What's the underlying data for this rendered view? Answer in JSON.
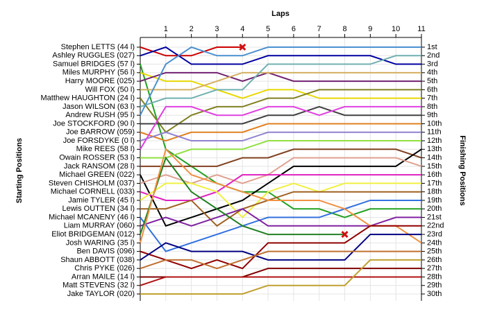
{
  "chart_data": {
    "type": "line",
    "x_label": "Laps",
    "y_label": "Starting Positions",
    "y2_label": "Finishing Positions",
    "x": [
      0,
      1,
      2,
      3,
      4,
      5,
      6,
      7,
      8,
      9,
      10,
      11
    ],
    "xlim": [
      0,
      11
    ],
    "xticks": [
      1,
      2,
      3,
      4,
      5,
      6,
      7,
      8,
      9,
      10,
      11
    ],
    "ylim": [
      1,
      30
    ],
    "y_inverted": true,
    "grid": true,
    "y2ticks": [
      {
        "value": 1,
        "label": "1st"
      },
      {
        "value": 2,
        "label": "2nd"
      },
      {
        "value": 3,
        "label": "3rd"
      },
      {
        "value": 4,
        "label": "4th"
      },
      {
        "value": 5,
        "label": "5th"
      },
      {
        "value": 6,
        "label": "6th"
      },
      {
        "value": 7,
        "label": "7th"
      },
      {
        "value": 8,
        "label": "8th"
      },
      {
        "value": 9,
        "label": "9th"
      },
      {
        "value": 10,
        "label": "10th"
      },
      {
        "value": 11,
        "label": "11th"
      },
      {
        "value": 12,
        "label": "12th"
      },
      {
        "value": 13,
        "label": "13th"
      },
      {
        "value": 14,
        "label": "14th"
      },
      {
        "value": 15,
        "label": "15th"
      },
      {
        "value": 16,
        "label": "16th"
      },
      {
        "value": 17,
        "label": "17th"
      },
      {
        "value": 18,
        "label": "18th"
      },
      {
        "value": 19,
        "label": "19th"
      },
      {
        "value": 20,
        "label": "20th"
      },
      {
        "value": 21,
        "label": "21st"
      },
      {
        "value": 22,
        "label": "22nd"
      },
      {
        "value": 23,
        "label": "23rd"
      },
      {
        "value": 24,
        "label": "24th"
      },
      {
        "value": 25,
        "label": "25th"
      },
      {
        "value": 26,
        "label": "26th"
      },
      {
        "value": 27,
        "label": "27th"
      },
      {
        "value": 28,
        "label": "28th"
      },
      {
        "value": 29,
        "label": "29th"
      },
      {
        "value": 30,
        "label": "30th"
      }
    ],
    "series": [
      {
        "name": "Stephen LETTS (44 l)",
        "color": "#cc0000",
        "values": [
          1,
          2,
          2,
          1,
          1,
          null,
          null,
          null,
          null,
          null,
          null,
          null
        ],
        "end_marker": "x"
      },
      {
        "name": "Ashley RUGGLES (027)",
        "color": "#0000a0",
        "values": [
          2,
          1,
          3,
          3,
          3,
          2,
          2,
          2,
          2,
          2,
          3,
          3
        ]
      },
      {
        "name": "Samuel BRIDGES (57 l)",
        "color": "#22a022",
        "values": [
          3,
          13,
          15,
          17,
          18,
          18,
          20,
          20,
          21,
          20,
          20,
          20
        ]
      },
      {
        "name": "Miles MURPHY (56 l)",
        "color": "#e8d800",
        "values": [
          4,
          5,
          5,
          6,
          7,
          6,
          6,
          7,
          7,
          7,
          7,
          7
        ]
      },
      {
        "name": "Harry MOORE (025)",
        "color": "#702070",
        "values": [
          5,
          4,
          4,
          4,
          5,
          4,
          5,
          5,
          5,
          5,
          5,
          5
        ]
      },
      {
        "name": "Will FOX (50 l)",
        "color": "#d4b060",
        "values": [
          6,
          6,
          6,
          5,
          4,
          4,
          4,
          4,
          4,
          4,
          4,
          4
        ]
      },
      {
        "name": "Matthew HAUGHTON (24 l)",
        "color": "#808020",
        "values": [
          7,
          11,
          9,
          8,
          8,
          7,
          7,
          6,
          6,
          6,
          6,
          6
        ]
      },
      {
        "name": "Jason WILSON (63 l)",
        "color": "#70b0b0",
        "values": [
          8,
          7,
          7,
          6,
          6,
          3,
          3,
          3,
          3,
          3,
          2,
          2
        ]
      },
      {
        "name": "Andrew RUSH (95 l)",
        "color": "#4a90d0",
        "values": [
          9,
          3,
          1,
          2,
          2,
          1,
          1,
          1,
          1,
          1,
          1,
          1
        ]
      },
      {
        "name": "Joe STOCKFORD (90 l)",
        "color": "#404040",
        "values": [
          10,
          10,
          10,
          10,
          10,
          9,
          9,
          8,
          9,
          9,
          9,
          9
        ]
      },
      {
        "name": "Joe BARROW (059)",
        "color": "#e08020",
        "values": [
          11,
          12,
          11,
          11,
          11,
          10,
          10,
          10,
          10,
          10,
          10,
          10
        ]
      },
      {
        "name": "Joe FORSDYKE (0 l)",
        "color": "#9080d0",
        "values": [
          12,
          11,
          12,
          12,
          12,
          11,
          11,
          11,
          11,
          11,
          11,
          11
        ]
      },
      {
        "name": "Mike REES (58 l)",
        "color": "#e040e0",
        "values": [
          13,
          8,
          8,
          9,
          9,
          8,
          8,
          9,
          8,
          8,
          8,
          8
        ]
      },
      {
        "name": "Owain ROSSER (53 l)",
        "color": "#90e040",
        "values": [
          14,
          14,
          13,
          13,
          13,
          12,
          12,
          12,
          12,
          12,
          12,
          12
        ]
      },
      {
        "name": "Jack RANSOM (28 l)",
        "color": "#804020",
        "values": [
          15,
          15,
          15,
          15,
          14,
          14,
          13,
          13,
          13,
          13,
          13,
          14
        ]
      },
      {
        "name": "Michael GREEN (022)",
        "color": "#000000",
        "values": [
          16,
          22,
          21,
          20,
          19,
          17,
          15,
          15,
          15,
          15,
          15,
          13
        ]
      },
      {
        "name": "Steven CHISHOLM (037)",
        "color": "#e0a090",
        "values": [
          17,
          16,
          17,
          16,
          17,
          16,
          14,
          14,
          14,
          14,
          14,
          15
        ]
      },
      {
        "name": "Michael CORNELL (033)",
        "color": "#e020c0",
        "values": [
          18,
          19,
          19,
          18,
          16,
          16,
          16,
          16,
          16,
          16,
          16,
          16
        ]
      },
      {
        "name": "Jamie TYLER (45 l)",
        "color": "#f0f040",
        "values": [
          19,
          17,
          17,
          18,
          21,
          18,
          17,
          18,
          17,
          17,
          17,
          17
        ]
      },
      {
        "name": "Lewis OUTTEN (34 l)",
        "color": "#a06020",
        "values": [
          20,
          20,
          19,
          22,
          20,
          19,
          18,
          18,
          18,
          18,
          18,
          18
        ]
      },
      {
        "name": "Michael MCANENY (46 l)",
        "color": "#3070e0",
        "values": [
          21,
          25,
          24,
          23,
          22,
          21,
          21,
          21,
          20,
          19,
          19,
          19
        ]
      },
      {
        "name": "Liam MURRAY (060)",
        "color": "#8020a0",
        "values": [
          22,
          21,
          22,
          21,
          20,
          22,
          22,
          22,
          22,
          22,
          21,
          21
        ]
      },
      {
        "name": "Eliot BRIDGEMAN (012)",
        "color": "#208020",
        "values": [
          23,
          14,
          18,
          20,
          22,
          23,
          23,
          23,
          23,
          null,
          null,
          null
        ],
        "end_marker": "x"
      },
      {
        "name": "Josh WARING (35 l)",
        "color": "#f09040",
        "values": [
          24,
          13,
          16,
          17,
          18,
          19,
          19,
          19,
          20,
          22,
          22,
          24
        ]
      },
      {
        "name": "Ben DAVIS (096)",
        "color": "#900000",
        "values": [
          25,
          26,
          27,
          26,
          27,
          24,
          24,
          24,
          24,
          22,
          22,
          22
        ]
      },
      {
        "name": "Shaun ABBOTT (038)",
        "color": "#000080",
        "values": [
          26,
          24,
          25,
          25,
          25,
          26,
          26,
          26,
          26,
          23,
          23,
          23
        ]
      },
      {
        "name": "Chris PYKE (026)",
        "color": "#c07030",
        "values": [
          27,
          26,
          26,
          27,
          26,
          25,
          25,
          25,
          25,
          25,
          25,
          25
        ]
      },
      {
        "name": "Arran MAILE (14 l)",
        "color": "#800000",
        "values": [
          28,
          28,
          28,
          28,
          28,
          27,
          27,
          27,
          27,
          27,
          27,
          27
        ]
      },
      {
        "name": "Matt STEVENS (32 l)",
        "color": "#b01010",
        "values": [
          29,
          28,
          28,
          28,
          28,
          28,
          28,
          28,
          28,
          28,
          28,
          28
        ]
      },
      {
        "name": "Jake TAYLOR (020)",
        "color": "#c0a030",
        "values": [
          30,
          30,
          30,
          30,
          30,
          29,
          29,
          29,
          29,
          26,
          26,
          26
        ]
      }
    ]
  }
}
